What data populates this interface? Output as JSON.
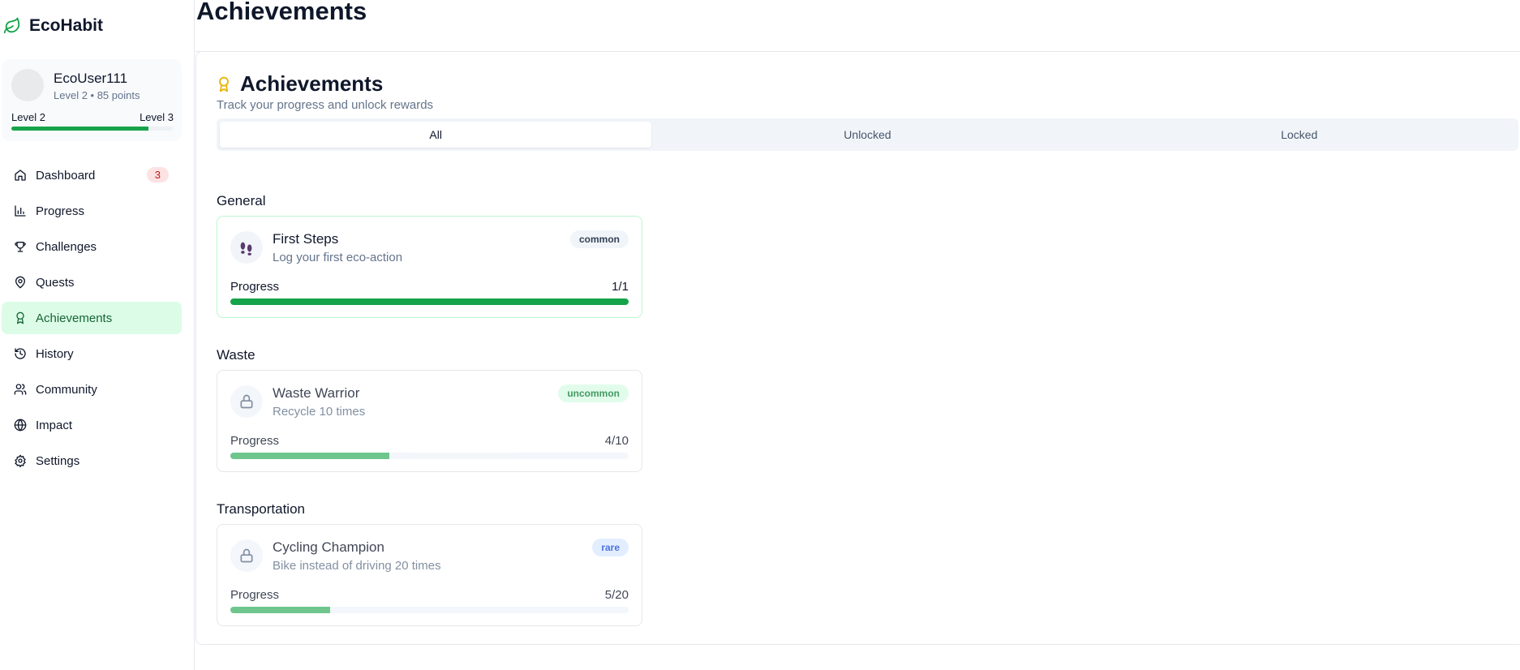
{
  "app": {
    "name": "EcoHabit",
    "accent": "#16a34a"
  },
  "profile": {
    "username": "EcoUser111",
    "level_text": "Level 2 • 85 points",
    "current_level": "Level 2",
    "next_level": "Level 3",
    "level_progress_percent": 85
  },
  "nav": [
    {
      "label": "Dashboard",
      "icon": "home-icon",
      "badge": "3"
    },
    {
      "label": "Progress",
      "icon": "bar-chart-icon"
    },
    {
      "label": "Challenges",
      "icon": "trophy-icon"
    },
    {
      "label": "Quests",
      "icon": "map-pin-icon"
    },
    {
      "label": "Achievements",
      "icon": "award-icon",
      "active": true
    },
    {
      "label": "History",
      "icon": "history-icon"
    },
    {
      "label": "Community",
      "icon": "users-icon"
    },
    {
      "label": "Impact",
      "icon": "globe-icon"
    },
    {
      "label": "Settings",
      "icon": "gear-icon"
    }
  ],
  "page": {
    "title": "Achievements"
  },
  "card": {
    "title": "Achievements",
    "subtitle": "Track your progress and unlock rewards",
    "tabs": [
      {
        "label": "All",
        "active": true
      },
      {
        "label": "Unlocked"
      },
      {
        "label": "Locked"
      }
    ]
  },
  "sections": [
    {
      "name": "General",
      "achievements": [
        {
          "name": "First Steps",
          "description": "Log your first eco-action",
          "rarity": "common",
          "progress_label": "Progress",
          "progress": "1/1",
          "percent": 100,
          "locked": false,
          "icon": "footprints-icon"
        }
      ]
    },
    {
      "name": "Waste",
      "achievements": [
        {
          "name": "Waste Warrior",
          "description": "Recycle 10 times",
          "rarity": "uncommon",
          "progress_label": "Progress",
          "progress": "4/10",
          "percent": 40,
          "locked": true,
          "icon": "lock-icon"
        }
      ]
    },
    {
      "name": "Transportation",
      "achievements": [
        {
          "name": "Cycling Champion",
          "description": "Bike instead of driving 20 times",
          "rarity": "rare",
          "progress_label": "Progress",
          "progress": "5/20",
          "percent": 25,
          "locked": true,
          "icon": "lock-icon"
        }
      ]
    }
  ]
}
